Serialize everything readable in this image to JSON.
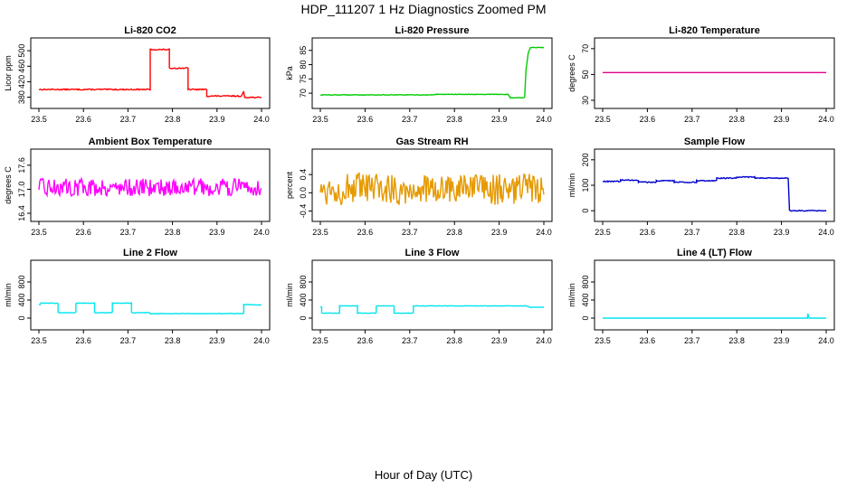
{
  "page": {
    "title": "HDP_111207  1 Hz Diagnostics Zoomed PM",
    "xlabel": "Hour of Day (UTC)"
  },
  "chart_data": [
    {
      "type": "line",
      "title": "Li-820 CO2",
      "ylabel": "Licor ppm",
      "color": "#ff0000",
      "xlim": [
        23.5,
        24.0
      ],
      "ylim": [
        372,
        512
      ],
      "xticks": [
        "23.5",
        "23.6",
        "23.7",
        "23.8",
        "23.9",
        "24.0"
      ],
      "yticks": [
        380,
        420,
        460,
        500
      ],
      "noise": 1.5,
      "points": [
        [
          23.5,
          400
        ],
        [
          23.75,
          400
        ],
        [
          23.75,
          503
        ],
        [
          23.793,
          503
        ],
        [
          23.793,
          455
        ],
        [
          23.835,
          455
        ],
        [
          23.835,
          400
        ],
        [
          23.877,
          400
        ],
        [
          23.877,
          383
        ],
        [
          23.955,
          383
        ],
        [
          23.96,
          394
        ],
        [
          23.962,
          380
        ],
        [
          24.0,
          379
        ]
      ]
    },
    {
      "type": "line",
      "title": "Li-820 Pressure",
      "ylabel": "kPa",
      "color": "#00cc00",
      "xlim": [
        23.5,
        24.0
      ],
      "ylim": [
        67.5,
        86.5
      ],
      "xticks": [
        "23.5",
        "23.6",
        "23.7",
        "23.8",
        "23.9",
        "24.0"
      ],
      "yticks": [
        70,
        75,
        80,
        85
      ],
      "noise": 0.1,
      "points": [
        [
          23.5,
          69.4
        ],
        [
          23.75,
          69.4
        ],
        [
          23.76,
          69.6
        ],
        [
          23.92,
          69.6
        ],
        [
          23.925,
          68.4
        ],
        [
          23.957,
          68.4
        ],
        [
          23.96,
          78
        ],
        [
          23.965,
          84
        ],
        [
          23.97,
          86
        ],
        [
          24.0,
          86
        ]
      ]
    },
    {
      "type": "line",
      "title": "Li-820 Temperature",
      "ylabel": "degrees C",
      "color": "#e0008a",
      "xlim": [
        23.5,
        24.0
      ],
      "ylim": [
        30,
        72
      ],
      "xticks": [
        "23.5",
        "23.6",
        "23.7",
        "23.8",
        "23.9",
        "24.0"
      ],
      "yticks": [
        30,
        50,
        70
      ],
      "noise": 0,
      "points": [
        [
          23.5,
          51.5
        ],
        [
          24.0,
          51.5
        ]
      ]
    },
    {
      "type": "line",
      "title": "Ambient Box Temperature",
      "ylabel": "degrees C",
      "color": "#ff00ff",
      "xlim": [
        23.5,
        24.0
      ],
      "ylim": [
        16.4,
        17.8
      ],
      "xticks": [
        "23.5",
        "23.6",
        "23.7",
        "23.8",
        "23.9",
        "24.0"
      ],
      "yticks": [
        16.4,
        17,
        17.6
      ],
      "ytick_labels": [
        "16.4",
        "17.0",
        "17.6"
      ],
      "noise": 0.22,
      "points": [
        [
          23.5,
          17.05
        ],
        [
          24.0,
          17.05
        ]
      ]
    },
    {
      "type": "line",
      "title": "Gas Stream RH",
      "ylabel": "percent",
      "color": "#e69a00",
      "xlim": [
        23.5,
        24.0
      ],
      "ylim": [
        -0.45,
        0.78
      ],
      "xticks": [
        "23.5",
        "23.6",
        "23.7",
        "23.8",
        "23.9",
        "24.0"
      ],
      "yticks": [
        -0.4,
        0,
        0.4
      ],
      "ytick_labels": [
        "-0.4",
        "0.0",
        "0.4"
      ],
      "noise": 0.35,
      "points": [
        [
          23.5,
          0.08
        ],
        [
          24.0,
          0.08
        ]
      ]
    },
    {
      "type": "line",
      "title": "Sample Flow",
      "ylabel": "ml/min",
      "color": "#0000cc",
      "xlim": [
        23.5,
        24.0
      ],
      "ylim": [
        -10,
        210
      ],
      "xticks": [
        "23.5",
        "23.6",
        "23.7",
        "23.8",
        "23.9",
        "24.0"
      ],
      "yticks": [
        0,
        100,
        200
      ],
      "noise": 2,
      "points": [
        [
          23.5,
          115
        ],
        [
          23.54,
          115
        ],
        [
          23.54,
          120
        ],
        [
          23.58,
          120
        ],
        [
          23.58,
          112
        ],
        [
          23.62,
          112
        ],
        [
          23.62,
          118
        ],
        [
          23.66,
          118
        ],
        [
          23.66,
          112
        ],
        [
          23.71,
          112
        ],
        [
          23.71,
          118
        ],
        [
          23.755,
          118
        ],
        [
          23.755,
          128
        ],
        [
          23.8,
          128
        ],
        [
          23.8,
          132
        ],
        [
          23.84,
          132
        ],
        [
          23.84,
          128
        ],
        [
          23.915,
          128
        ],
        [
          23.918,
          0
        ],
        [
          24.0,
          0
        ]
      ]
    },
    {
      "type": "line",
      "title": "Line 2 Flow",
      "ylabel": "ml/min",
      "color": "#00e5ee",
      "xlim": [
        23.5,
        24.0
      ],
      "ylim": [
        -80,
        1100
      ],
      "xticks": [
        "23.5",
        "23.6",
        "23.7",
        "23.8",
        "23.9",
        "24.0"
      ],
      "yticks": [
        0,
        400,
        800
      ],
      "noise": 6,
      "points": [
        [
          23.5,
          300
        ],
        [
          23.503,
          300
        ],
        [
          23.503,
          330
        ],
        [
          23.543,
          330
        ],
        [
          23.543,
          120
        ],
        [
          23.583,
          120
        ],
        [
          23.583,
          330
        ],
        [
          23.625,
          330
        ],
        [
          23.625,
          120
        ],
        [
          23.665,
          120
        ],
        [
          23.665,
          330
        ],
        [
          23.708,
          330
        ],
        [
          23.708,
          120
        ],
        [
          23.75,
          120
        ],
        [
          23.75,
          100
        ],
        [
          23.96,
          100
        ],
        [
          23.96,
          300
        ],
        [
          24.0,
          290
        ]
      ]
    },
    {
      "type": "line",
      "title": "Line 3 Flow",
      "ylabel": "ml/min",
      "color": "#00e5ee",
      "xlim": [
        23.5,
        24.0
      ],
      "ylim": [
        -80,
        1100
      ],
      "xticks": [
        "23.5",
        "23.6",
        "23.7",
        "23.8",
        "23.9",
        "24.0"
      ],
      "yticks": [
        0,
        400,
        800
      ],
      "noise": 4,
      "points": [
        [
          23.5,
          250
        ],
        [
          23.503,
          250
        ],
        [
          23.503,
          110
        ],
        [
          23.543,
          110
        ],
        [
          23.543,
          270
        ],
        [
          23.583,
          270
        ],
        [
          23.583,
          110
        ],
        [
          23.625,
          110
        ],
        [
          23.625,
          270
        ],
        [
          23.665,
          270
        ],
        [
          23.665,
          110
        ],
        [
          23.708,
          110
        ],
        [
          23.708,
          270
        ],
        [
          23.96,
          270
        ],
        [
          23.97,
          240
        ],
        [
          24.0,
          240
        ]
      ]
    },
    {
      "type": "line",
      "title": "Line 4 (LT) Flow",
      "ylabel": "ml/min",
      "color": "#00e5ee",
      "xlim": [
        23.5,
        24.0
      ],
      "ylim": [
        -80,
        1100
      ],
      "xticks": [
        "23.5",
        "23.6",
        "23.7",
        "23.8",
        "23.9",
        "24.0"
      ],
      "yticks": [
        0,
        400,
        800
      ],
      "noise": 0,
      "points": [
        [
          23.5,
          0
        ],
        [
          23.958,
          0
        ],
        [
          23.959,
          100
        ],
        [
          23.961,
          20
        ],
        [
          23.962,
          0
        ],
        [
          24.0,
          0
        ]
      ]
    }
  ]
}
